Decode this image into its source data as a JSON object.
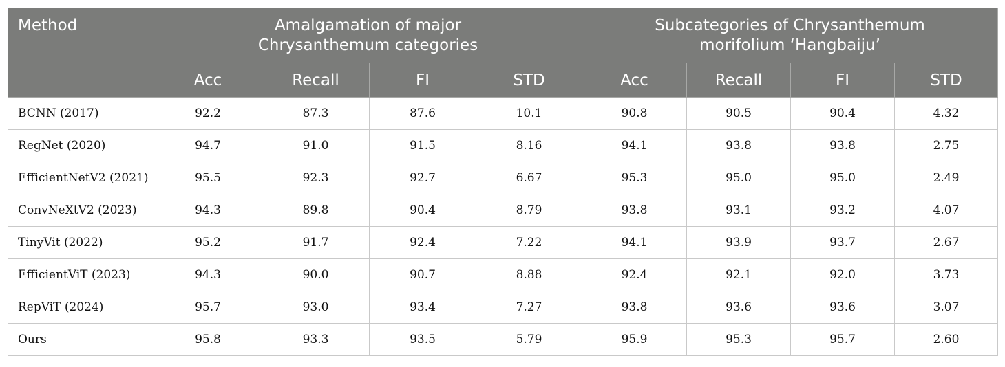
{
  "header": {
    "method": "Method",
    "groups": [
      {
        "line1": "Amalgamation of major",
        "line2": "Chrysanthemum categories"
      },
      {
        "line1": "Subcategories of Chrysanthemum",
        "line2": "morifolium ‘Hangbaiju’"
      }
    ],
    "metrics": [
      "Acc",
      "Recall",
      "FI",
      "STD",
      "Acc",
      "Recall",
      "FI",
      "STD"
    ]
  },
  "rows": [
    {
      "method": "BCNN (2017)",
      "values": [
        "92.2",
        "87.3",
        "87.6",
        "10.1",
        "90.8",
        "90.5",
        "90.4",
        "4.32"
      ]
    },
    {
      "method": "RegNet (2020)",
      "values": [
        "94.7",
        "91.0",
        "91.5",
        "8.16",
        "94.1",
        "93.8",
        "93.8",
        "2.75"
      ]
    },
    {
      "method": "EfficientNetV2 (2021)",
      "values": [
        "95.5",
        "92.3",
        "92.7",
        "6.67",
        "95.3",
        "95.0",
        "95.0",
        "2.49"
      ]
    },
    {
      "method": "ConvNeXtV2 (2023)",
      "values": [
        "94.3",
        "89.8",
        "90.4",
        "8.79",
        "93.8",
        "93.1",
        "93.2",
        "4.07"
      ]
    },
    {
      "method": "TinyVit (2022)",
      "values": [
        "95.2",
        "91.7",
        "92.4",
        "7.22",
        "94.1",
        "93.9",
        "93.7",
        "2.67"
      ]
    },
    {
      "method": "EfficientViT (2023)",
      "values": [
        "94.3",
        "90.0",
        "90.7",
        "8.88",
        "92.4",
        "92.1",
        "92.0",
        "3.73"
      ]
    },
    {
      "method": "RepViT (2024)",
      "values": [
        "95.7",
        "93.0",
        "93.4",
        "7.27",
        "93.8",
        "93.6",
        "93.6",
        "3.07"
      ]
    },
    {
      "method": "Ours",
      "values": [
        "95.8",
        "93.3",
        "93.5",
        "5.79",
        "95.9",
        "95.3",
        "95.7",
        "2.60"
      ]
    }
  ],
  "colors": {
    "header_background": "#7b7c7a",
    "header_text": "#ffffff",
    "grid_line": "#c9c9c9"
  }
}
